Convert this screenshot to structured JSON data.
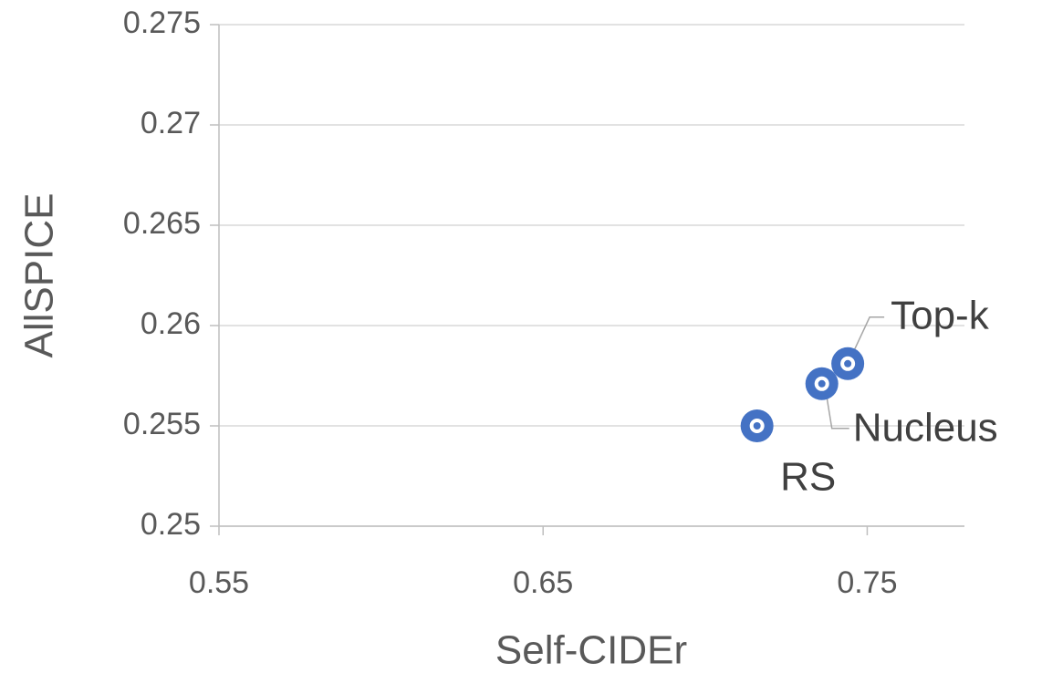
{
  "chart_data": {
    "type": "scatter",
    "x_label": "Self-CIDEr",
    "y_label": "AllSPICE",
    "x": [
      0.716,
      0.736,
      0.744
    ],
    "values": [
      0.255,
      0.2571,
      0.2581
    ],
    "labels": [
      "RS",
      "Nucleus",
      "Top-k"
    ],
    "color": "#4472c4",
    "xlim": [
      0.55,
      0.78
    ],
    "xticks": [
      0.55,
      0.65,
      0.75
    ],
    "ylim": [
      0.25,
      0.275
    ],
    "yticks": [
      0.25,
      0.255,
      0.26,
      0.265,
      0.27,
      0.275
    ],
    "grid": true
  }
}
